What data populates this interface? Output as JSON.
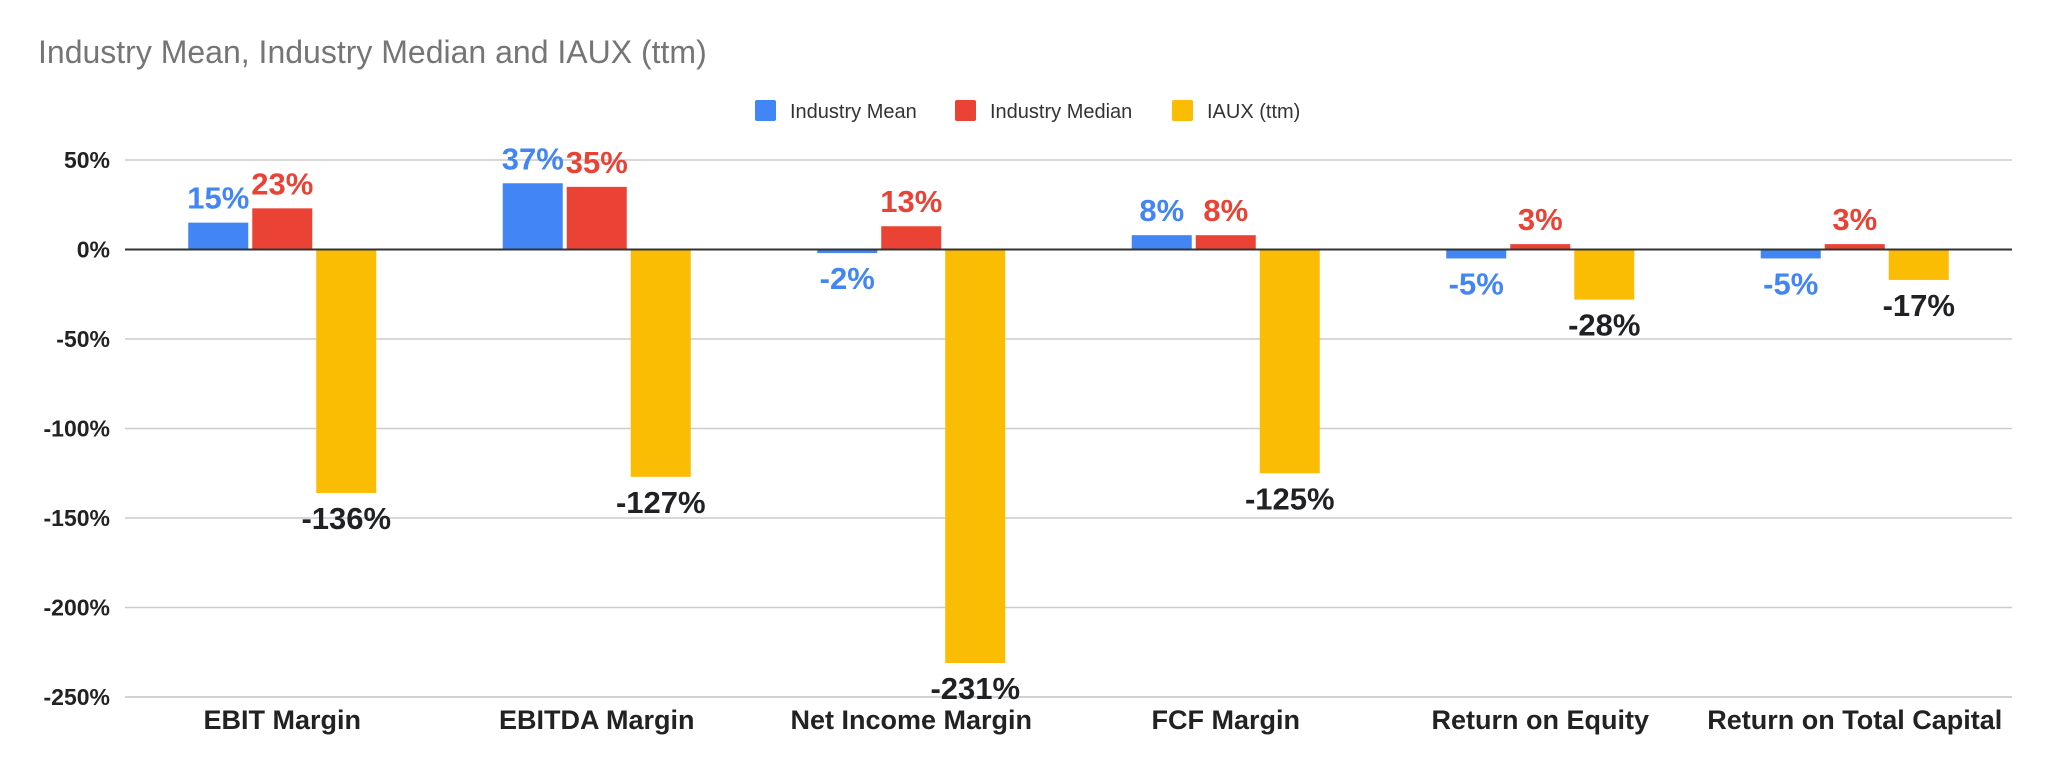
{
  "chart_data": {
    "type": "bar",
    "title": "Industry Mean, Industry Median and IAUX (ttm)",
    "categories": [
      "EBIT Margin",
      "EBITDA Margin",
      "Net Income Margin",
      "FCF Margin",
      "Return on Equity",
      "Return on Total Capital"
    ],
    "series": [
      {
        "name": "Industry Mean",
        "color": "#4285F4",
        "values": [
          15,
          37,
          -2,
          8,
          -5,
          -5
        ],
        "labels": [
          "15%",
          "37%",
          "-2%",
          "8%",
          "-5%",
          "-5%"
        ]
      },
      {
        "name": "Industry Median",
        "color": "#EA4335",
        "values": [
          23,
          35,
          13,
          8,
          3,
          3
        ],
        "labels": [
          "23%",
          "35%",
          "13%",
          "8%",
          "3%",
          "3%"
        ]
      },
      {
        "name": "IAUX (ttm)",
        "color": "#FBBC04",
        "values": [
          -136,
          -127,
          -231,
          -125,
          -28,
          -17
        ],
        "labels": [
          "-136%",
          "-127%",
          "-231%",
          "-125%",
          "-28%",
          "-17%"
        ]
      }
    ],
    "data_label_colors": [
      "#4285F4",
      "#EA4335",
      "#202124"
    ],
    "ylim": [
      -250,
      50
    ],
    "y_ticks": [
      50,
      0,
      -50,
      -100,
      -150,
      -200,
      -250
    ],
    "y_tick_labels": [
      "50%",
      "0%",
      "-50%",
      "-100%",
      "-150%",
      "-200%",
      "-250%"
    ],
    "grid": true,
    "legend_position": "top"
  }
}
